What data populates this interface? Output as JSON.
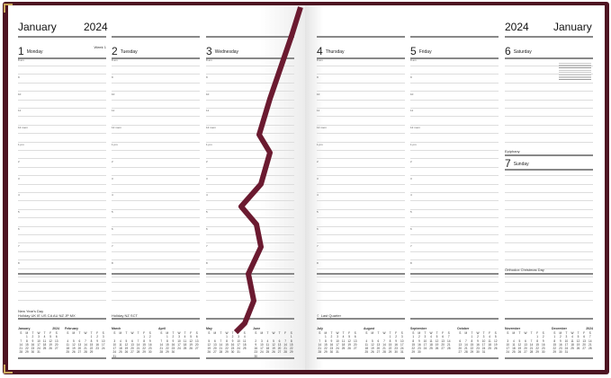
{
  "left_header": {
    "month": "January",
    "year": "2024"
  },
  "right_header": {
    "month": "January",
    "year": "2024"
  },
  "days": [
    {
      "num": "1",
      "name": "Monday",
      "week": "Week 1"
    },
    {
      "num": "2",
      "name": "Tuesday"
    },
    {
      "num": "3",
      "name": "Wednesday"
    },
    {
      "num": "4",
      "name": "Thursday"
    },
    {
      "num": "5",
      "name": "Friday"
    },
    {
      "num": "6",
      "name": "Saturday"
    }
  ],
  "sunday": {
    "num": "7",
    "name": "Sunday",
    "above": "Epiphany",
    "note": "Orthodox Christmas Day"
  },
  "hours": [
    "8 am",
    "9",
    "10",
    "11",
    "12 noon",
    "1 pm",
    "2",
    "3",
    "4",
    "5",
    "6",
    "7",
    "8"
  ],
  "footer_notes": {
    "col1_line1": "New Year's Day",
    "col1_line2": "Holiday UK IE US CA AU NZ JP MX",
    "col2": "Holiday NZ SCT",
    "col4": "☾ Last Quarter"
  },
  "weekday_letters": [
    "S",
    "M",
    "T",
    "W",
    "T",
    "F",
    "S"
  ],
  "months": [
    {
      "name": "January",
      "year": "2024",
      "start": 1,
      "days": 31
    },
    {
      "name": "February",
      "start": 4,
      "days": 29
    },
    {
      "name": "March",
      "start": 5,
      "days": 31
    },
    {
      "name": "April",
      "start": 1,
      "days": 30
    },
    {
      "name": "May",
      "start": 3,
      "days": 31
    },
    {
      "name": "June",
      "start": 6,
      "days": 30
    },
    {
      "name": "July",
      "start": 1,
      "days": 31
    },
    {
      "name": "August",
      "start": 4,
      "days": 31
    },
    {
      "name": "September",
      "start": 0,
      "days": 30
    },
    {
      "name": "October",
      "start": 2,
      "days": 31
    },
    {
      "name": "November",
      "start": 5,
      "days": 30
    },
    {
      "name": "December",
      "year": "2024",
      "start": 0,
      "days": 31
    }
  ],
  "colors": {
    "cover": "#4e1422",
    "ribbon": "#6b1a30",
    "clip": "#c9a75a"
  }
}
